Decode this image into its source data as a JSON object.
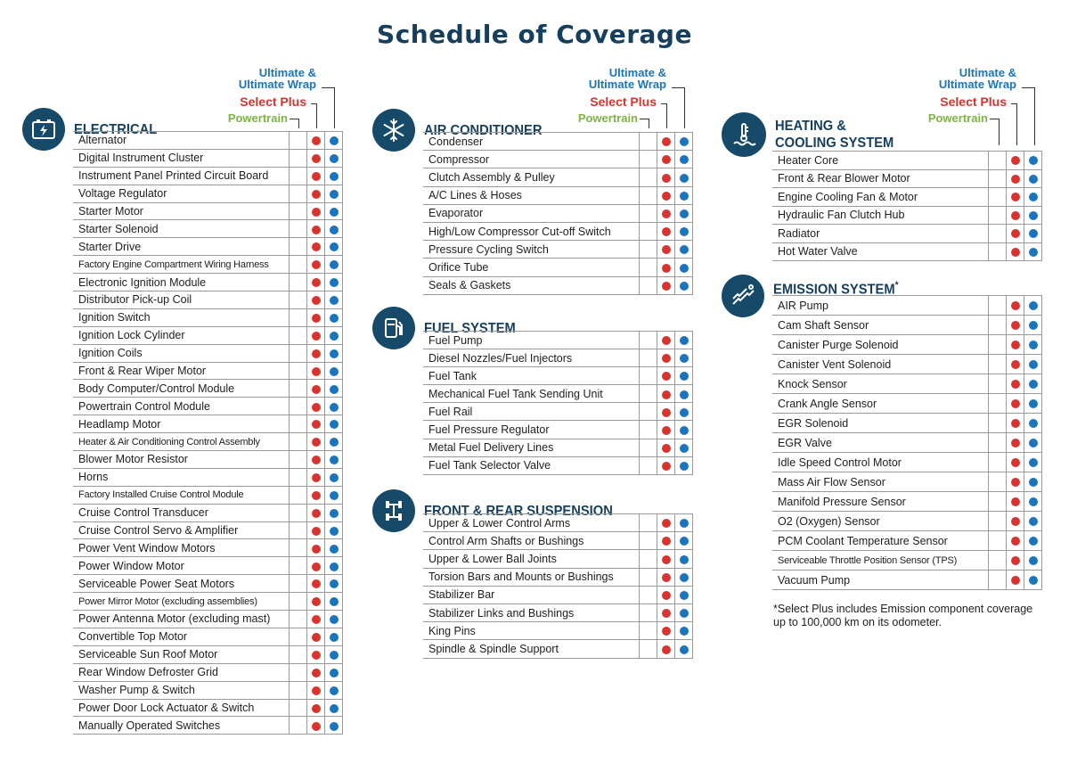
{
  "title": "Schedule of Coverage",
  "legend": {
    "ultimate_line1": "Ultimate &",
    "ultimate_line2": "Ultimate Wrap",
    "select_plus": "Select Plus",
    "powertrain": "Powertrain"
  },
  "colors": {
    "select_plus": "#d9332e",
    "ultimate": "#1b75bc",
    "powertrain": "#7db442",
    "icon_bg": "#174a69"
  },
  "sections": {
    "electrical": {
      "title": "ELECTRICAL",
      "icon": "battery-icon",
      "items": [
        "Alternator",
        "Digital Instrument Cluster",
        "Instrument Panel Printed Circuit Board",
        "Voltage Regulator",
        "Starter Motor",
        "Starter Solenoid",
        "Starter Drive",
        "Factory Engine Compartment Wiring Harness",
        "Electronic Ignition Module",
        "Distributor Pick-up Coil",
        "Ignition Switch",
        "Ignition Lock Cylinder",
        "Ignition Coils",
        "Front & Rear Wiper Motor",
        "Body Computer/Control Module",
        "Powertrain Control Module",
        "Headlamp Motor",
        "Heater & Air Conditioning Control Assembly",
        "Blower Motor Resistor",
        "Horns",
        "Factory Installed Cruise Control Module",
        "Cruise Control Transducer",
        "Cruise Control Servo & Amplifier",
        "Power Vent Window Motors",
        "Power Window Motor",
        "Serviceable Power Seat Motors",
        "Power Mirror Motor (excluding assemblies)",
        "Power Antenna Motor (excluding mast)",
        "Convertible Top Motor",
        "Serviceable Sun Roof Motor",
        "Rear Window Defroster Grid",
        "Washer Pump & Switch",
        "Power Door Lock Actuator & Switch",
        "Manually Operated Switches"
      ]
    },
    "air_conditioner": {
      "title": "AIR CONDITIONER",
      "icon": "snowflake-icon",
      "items": [
        "Condenser",
        "Compressor",
        "Clutch Assembly & Pulley",
        "A/C Lines & Hoses",
        "Evaporator",
        "High/Low Compressor Cut-off Switch",
        "Pressure Cycling Switch",
        "Orifice Tube",
        "Seals & Gaskets"
      ]
    },
    "fuel_system": {
      "title": "FUEL SYSTEM",
      "icon": "fuel-pump-icon",
      "items": [
        "Fuel Pump",
        "Diesel Nozzles/Fuel Injectors",
        "Fuel Tank",
        "Mechanical Fuel Tank Sending Unit",
        "Fuel Rail",
        "Fuel Pressure Regulator",
        "Metal Fuel Delivery Lines",
        "Fuel Tank Selector Valve"
      ]
    },
    "suspension": {
      "title": "FRONT & REAR SUSPENSION",
      "icon": "axle-icon",
      "items": [
        "Upper & Lower Control Arms",
        "Control Arm Shafts or Bushings",
        "Upper & Lower Ball Joints",
        "Torsion Bars and Mounts or Bushings",
        "Stabilizer Bar",
        "Stabilizer Links and Bushings",
        "King Pins",
        "Spindle & Spindle Support"
      ]
    },
    "heating_cooling": {
      "title_line1": "HEATING &",
      "title_line2": "COOLING SYSTEM",
      "icon": "coolant-thermometer-icon",
      "items": [
        "Heater Core",
        "Front & Rear Blower Motor",
        "Engine Cooling Fan & Motor",
        "Hydraulic Fan Clutch Hub",
        "Radiator",
        "Hot Water Valve"
      ]
    },
    "emission": {
      "title": "EMISSION SYSTEM",
      "title_mark": "*",
      "icon": "exhaust-pipe-icon",
      "items": [
        "AIR Pump",
        "Cam Shaft Sensor",
        "Canister Purge Solenoid",
        "Canister Vent Solenoid",
        "Knock Sensor",
        "Crank Angle Sensor",
        "EGR Solenoid",
        "EGR Valve",
        "Idle Speed Control Motor",
        "Mass Air Flow Sensor",
        "Manifold Pressure Sensor",
        "O2 (Oxygen) Sensor",
        "PCM Coolant Temperature Sensor",
        "Serviceable Throttle Position Sensor (TPS)",
        "Vacuum Pump"
      ]
    }
  },
  "footnote": "*Select Plus includes Emission component coverage up to 100,000 km on its odometer."
}
